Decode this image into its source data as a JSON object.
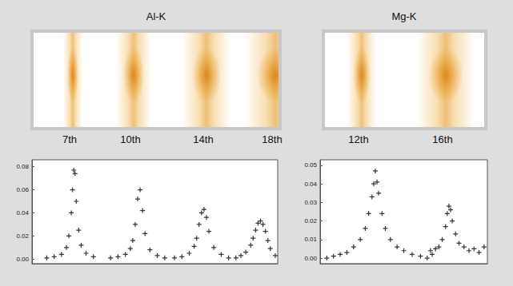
{
  "images": [
    {
      "title": "Al-K",
      "bands": [
        "7th",
        "10th",
        "14th",
        "18th"
      ]
    },
    {
      "title": "Mg-K",
      "bands": [
        "12th",
        "16th"
      ]
    }
  ],
  "chart_data": [
    {
      "type": "scatter",
      "marker": "plus",
      "color": "#000000",
      "tick_labels": "y",
      "grid": false,
      "xlim": [
        0,
        100
      ],
      "ylim": [
        -0.004,
        0.086
      ],
      "yticks": [
        {
          "value": 0,
          "label": "0.00"
        },
        {
          "value": 0.02,
          "label": "0.02"
        },
        {
          "value": 0.04,
          "label": "0.04"
        },
        {
          "value": 0.06,
          "label": "0.06"
        },
        {
          "value": 0.08,
          "label": "0.08"
        }
      ],
      "x": [
        6,
        9,
        12,
        14,
        15,
        16,
        16.5,
        17,
        17.5,
        18,
        19,
        20,
        22,
        25,
        32,
        35,
        38,
        40,
        41,
        42,
        43,
        44,
        45,
        46,
        48,
        51,
        54,
        58,
        61,
        64,
        66,
        67,
        68,
        69,
        70,
        71,
        72,
        74,
        77,
        80,
        83,
        85,
        87,
        89,
        90,
        91,
        92,
        93,
        94,
        95,
        96,
        97,
        99
      ],
      "values": [
        0.001,
        0.002,
        0.004,
        0.01,
        0.02,
        0.04,
        0.06,
        0.077,
        0.074,
        0.05,
        0.025,
        0.012,
        0.005,
        0.002,
        0.001,
        0.002,
        0.004,
        0.009,
        0.016,
        0.03,
        0.052,
        0.06,
        0.042,
        0.022,
        0.008,
        0.003,
        0.001,
        0.001,
        0.002,
        0.005,
        0.011,
        0.018,
        0.03,
        0.04,
        0.043,
        0.036,
        0.024,
        0.01,
        0.004,
        0.001,
        0.001,
        0.003,
        0.006,
        0.012,
        0.018,
        0.025,
        0.031,
        0.033,
        0.03,
        0.024,
        0.016,
        0.009,
        0.003
      ]
    },
    {
      "type": "scatter",
      "marker": "plus",
      "color": "#000000",
      "tick_labels": "y",
      "grid": false,
      "xlim": [
        0,
        100
      ],
      "ylim": [
        -0.003,
        0.053
      ],
      "yticks": [
        {
          "value": 0,
          "label": "0.00"
        },
        {
          "value": 0.01,
          "label": "0.01"
        },
        {
          "value": 0.02,
          "label": "0.02"
        },
        {
          "value": 0.03,
          "label": "0.03"
        },
        {
          "value": 0.04,
          "label": "0.04"
        },
        {
          "value": 0.05,
          "label": "0.05"
        }
      ],
      "x": [
        4,
        8,
        12,
        16,
        20,
        24,
        27,
        29,
        31,
        32,
        33,
        34,
        35,
        37,
        39,
        42,
        46,
        50,
        55,
        60,
        64,
        66,
        67,
        69,
        71,
        73,
        75,
        76,
        77,
        78,
        79,
        81,
        83,
        86,
        89,
        92,
        95,
        98
      ],
      "values": [
        0.0,
        0.001,
        0.002,
        0.003,
        0.006,
        0.01,
        0.016,
        0.024,
        0.033,
        0.04,
        0.047,
        0.041,
        0.035,
        0.024,
        0.016,
        0.01,
        0.006,
        0.004,
        0.002,
        0.001,
        0.0,
        0.004,
        0.002,
        0.005,
        0.006,
        0.01,
        0.017,
        0.024,
        0.028,
        0.026,
        0.02,
        0.013,
        0.008,
        0.006,
        0.004,
        0.005,
        0.003,
        0.006
      ]
    }
  ]
}
